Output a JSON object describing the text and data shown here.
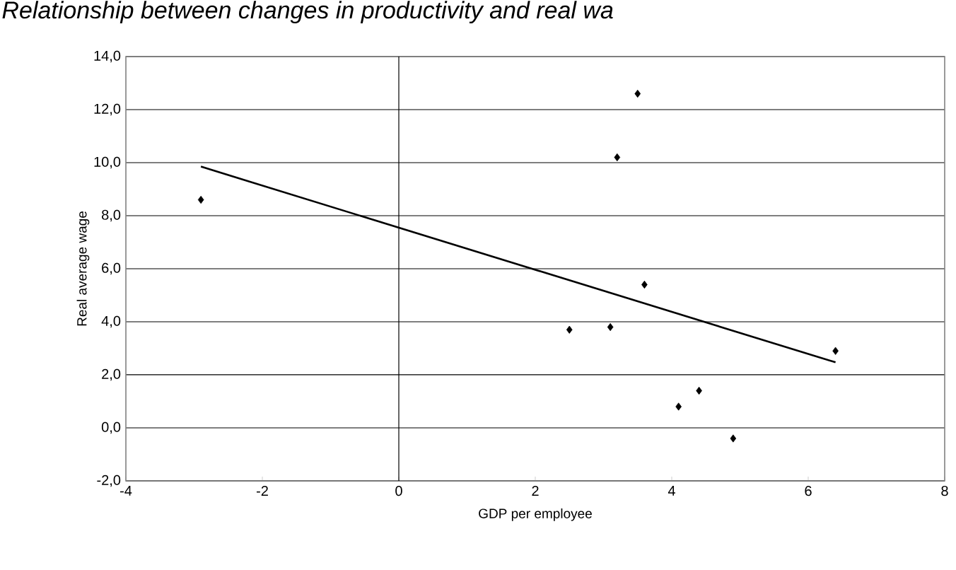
{
  "chart_data": {
    "type": "scatter",
    "title": "Relationship between changes in productivity and real wa",
    "xlabel": "GDP per employee",
    "ylabel": "Real average wage",
    "series": [
      {
        "color": "#000000",
        "marker": "diamond",
        "x": [
          -2.9,
          3.5,
          3.2,
          3.6,
          2.5,
          3.1,
          6.4,
          4.1,
          4.4,
          4.9
        ],
        "values": [
          8.6,
          12.6,
          10.2,
          5.4,
          3.7,
          3.8,
          2.9,
          0.8,
          1.4,
          -0.4
        ]
      },
      {
        "type": "line",
        "color": "#000000",
        "marker": "none",
        "x": [
          -2.9,
          6.4
        ],
        "values": [
          9.85,
          2.47
        ]
      }
    ],
    "xlim": [
      -4,
      8
    ],
    "xticks": [
      -4,
      -2,
      0,
      2,
      4,
      6,
      8
    ],
    "ylim": [
      -2,
      14
    ],
    "yticks": [
      {
        "value": -2,
        "label": "-2,0"
      },
      {
        "value": 0,
        "label": "0,0"
      },
      {
        "value": 2,
        "label": "2,0"
      },
      {
        "value": 4,
        "label": "4,0"
      },
      {
        "value": 6,
        "label": "6,0"
      },
      {
        "value": 8,
        "label": "8,0"
      },
      {
        "value": 10,
        "label": "10,0"
      },
      {
        "value": 12,
        "label": "12,0"
      },
      {
        "value": 14,
        "label": "14,0"
      }
    ],
    "ref_lines": [
      {
        "axis": "x",
        "value": 0,
        "color": "#000000"
      }
    ],
    "grid": "y"
  }
}
